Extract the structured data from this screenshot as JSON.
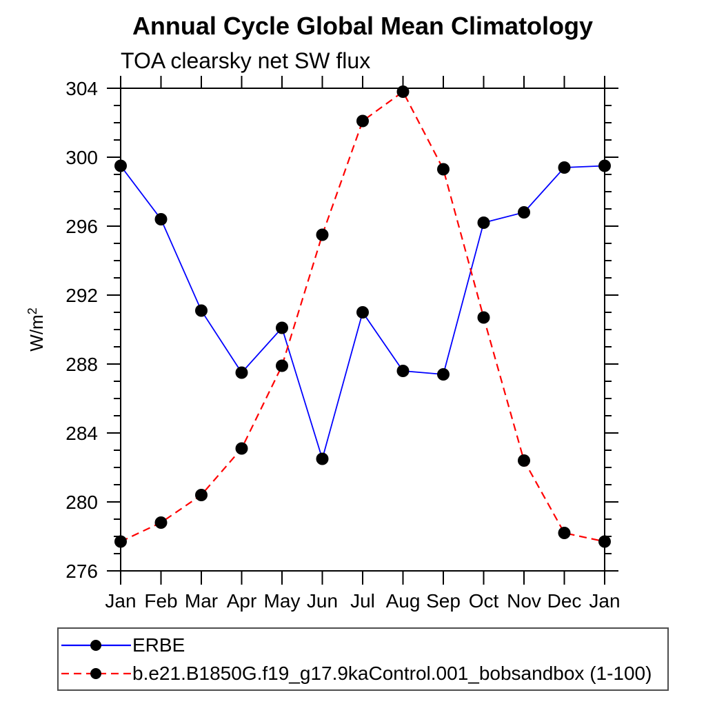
{
  "chart_data": {
    "type": "line",
    "title": "Annual Cycle Global Mean Climatology",
    "subtitle": "TOA clearsky net SW flux",
    "ylabel": "W/m²",
    "xlabel": "",
    "categories": [
      "Jan",
      "Feb",
      "Mar",
      "Apr",
      "May",
      "Jun",
      "Jul",
      "Aug",
      "Sep",
      "Oct",
      "Nov",
      "Dec",
      "Jan"
    ],
    "ylim": [
      276,
      304
    ],
    "ytick_major_step": 4,
    "ytick_minor_step": 1,
    "grid": false,
    "legend_position": "bottom-left",
    "axis_color": "#000000",
    "series": [
      {
        "name": "ERBE",
        "color": "#0000ff",
        "line_style": "solid",
        "marker": "filled-circle",
        "marker_color": "#000000",
        "values": [
          299.5,
          296.4,
          291.1,
          287.5,
          290.1,
          282.5,
          291.0,
          287.6,
          287.4,
          296.2,
          296.8,
          299.4,
          299.5
        ]
      },
      {
        "name": "b.e21.B1850G.f19_g17.9kaControl.001_bobsandbox (1-100)",
        "color": "#ff0000",
        "line_style": "dashed",
        "marker": "filled-circle",
        "marker_color": "#000000",
        "values": [
          277.7,
          278.8,
          280.4,
          283.1,
          287.9,
          295.5,
          302.1,
          303.8,
          299.3,
          290.7,
          282.4,
          278.2,
          277.7
        ]
      }
    ]
  }
}
